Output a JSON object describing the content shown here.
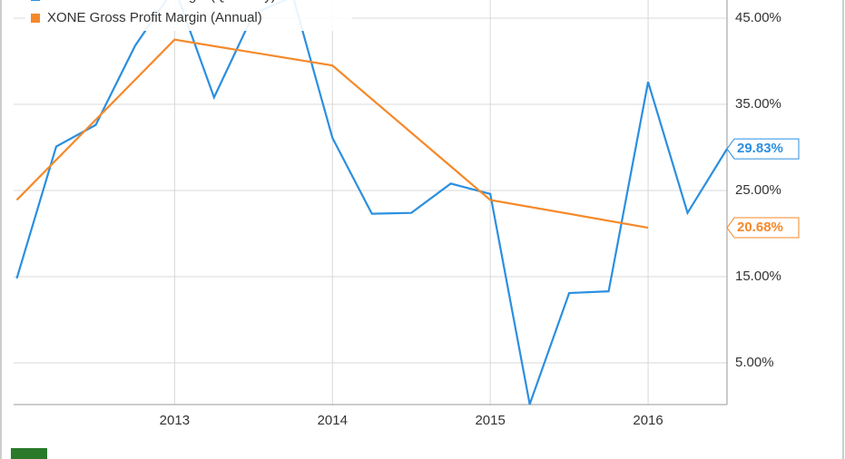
{
  "chart_data": {
    "type": "line",
    "x": [
      2012,
      2012.25,
      2012.5,
      2012.75,
      2013,
      2013.25,
      2013.5,
      2013.75,
      2014,
      2014.25,
      2014.5,
      2014.75,
      2015,
      2015.25,
      2015.5,
      2015.75,
      2016,
      2016.25,
      2016.5
    ],
    "series": [
      {
        "name": "XONE Gross Profit Margin (Quarterly)",
        "color": "#2b8fe0",
        "values": [
          14.8,
          30.1,
          32.6,
          41.8,
          48.5,
          35.8,
          45.5,
          47.5,
          31.1,
          22.3,
          22.4,
          25.8,
          24.6,
          0.2,
          13.1,
          13.3,
          37.6,
          22.4,
          29.83
        ],
        "value_labels": [
          null,
          null,
          null,
          null,
          null,
          null,
          null,
          null,
          null,
          null,
          null,
          null,
          null,
          null,
          null,
          null,
          null,
          null,
          "29.83%"
        ]
      },
      {
        "name": "XONE Gross Profit Margin (Annual)",
        "color": "#f5892a",
        "x": [
          2012,
          2013,
          2014,
          2015,
          2016
        ],
        "values": [
          23.9,
          42.5,
          39.5,
          23.9,
          20.68
        ],
        "value_labels": [
          null,
          null,
          null,
          null,
          "20.68%"
        ]
      }
    ],
    "xlim": [
      2011.98,
      2016.5
    ],
    "xticks": [
      2013,
      2014,
      2015,
      2016
    ],
    "ylim": [
      0.16,
      47.1
    ],
    "yticks": [
      {
        "value": 5,
        "label": "5.00%"
      },
      {
        "value": 15,
        "label": "15.00%"
      },
      {
        "value": 25,
        "label": "25.00%"
      },
      {
        "value": 35,
        "label": "35.00%"
      },
      {
        "value": 45,
        "label": "45.00%"
      }
    ],
    "grid": true
  }
}
